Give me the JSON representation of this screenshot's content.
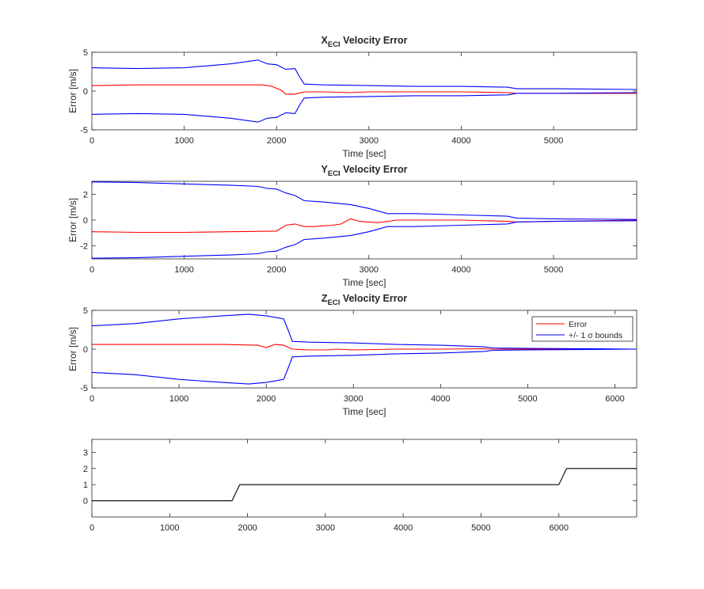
{
  "colors": {
    "error": "#ff0000",
    "bounds": "#0000ff",
    "step": "#000000",
    "axes": "#262626",
    "background": "#ffffff"
  },
  "chart_data": [
    {
      "type": "line",
      "title": {
        "base": "X",
        "sub": "ECI",
        "rest": " Velocity Error"
      },
      "xlabel": "Time [sec]",
      "ylabel": "Error [m/s]",
      "xlim": [
        0,
        5900
      ],
      "ylim": [
        -5,
        5
      ],
      "xticks": [
        0,
        1000,
        2000,
        3000,
        4000,
        5000
      ],
      "yticks": [
        -5,
        0,
        5
      ],
      "grid": false,
      "series": [
        {
          "role": "error",
          "x": [
            0,
            500,
            1000,
            1500,
            1850,
            1950,
            2050,
            2100,
            2200,
            2300,
            2500,
            2800,
            3000,
            3200,
            3500,
            4000,
            4500,
            4600,
            5000,
            5900
          ],
          "y": [
            0.7,
            0.8,
            0.8,
            0.8,
            0.8,
            0.6,
            0.1,
            -0.4,
            -0.4,
            -0.1,
            -0.1,
            -0.2,
            -0.1,
            -0.1,
            -0.1,
            -0.1,
            -0.2,
            -0.3,
            -0.3,
            -0.3
          ]
        },
        {
          "role": "bounds",
          "x": [
            0,
            500,
            1000,
            1500,
            1800,
            1900,
            2000,
            2100,
            2200,
            2250,
            2300,
            2500,
            3000,
            3500,
            4000,
            4500,
            4600,
            5000,
            5900
          ],
          "y": [
            3.0,
            2.9,
            3.0,
            3.5,
            4.0,
            3.5,
            3.4,
            2.8,
            2.9,
            1.8,
            0.9,
            0.8,
            0.7,
            0.6,
            0.6,
            0.5,
            0.3,
            0.3,
            0.2
          ]
        },
        {
          "role": "bounds",
          "x": [
            0,
            500,
            1000,
            1500,
            1800,
            1900,
            2000,
            2100,
            2200,
            2250,
            2300,
            2500,
            3000,
            3500,
            4000,
            4500,
            4600,
            5000,
            5900
          ],
          "y": [
            -3.0,
            -2.9,
            -3.0,
            -3.5,
            -4.0,
            -3.5,
            -3.4,
            -2.8,
            -2.9,
            -1.8,
            -0.9,
            -0.8,
            -0.7,
            -0.6,
            -0.6,
            -0.5,
            -0.3,
            -0.3,
            -0.2
          ]
        }
      ]
    },
    {
      "type": "line",
      "title": {
        "base": "Y",
        "sub": "ECI",
        "rest": " Velocity Error"
      },
      "xlabel": "Time [sec]",
      "ylabel": "Error [m/s]",
      "xlim": [
        0,
        5900
      ],
      "ylim": [
        -3,
        3
      ],
      "xticks": [
        0,
        1000,
        2000,
        3000,
        4000,
        5000
      ],
      "yticks": [
        -2,
        0,
        2
      ],
      "grid": false,
      "series": [
        {
          "role": "error",
          "x": [
            0,
            500,
            1000,
            1500,
            2000,
            2100,
            2200,
            2300,
            2400,
            2600,
            2700,
            2800,
            2900,
            3100,
            3300,
            4000,
            4500,
            4600,
            5000,
            5900
          ],
          "y": [
            -0.9,
            -0.95,
            -0.95,
            -0.9,
            -0.85,
            -0.4,
            -0.3,
            -0.5,
            -0.5,
            -0.4,
            -0.3,
            0.1,
            -0.1,
            -0.2,
            0.0,
            0.0,
            -0.1,
            -0.15,
            -0.1,
            0.0
          ]
        },
        {
          "role": "bounds",
          "x": [
            0,
            500,
            1000,
            1500,
            1800,
            1900,
            2000,
            2100,
            2200,
            2300,
            2500,
            2800,
            3000,
            3200,
            3500,
            4000,
            4500,
            4600,
            5000,
            5900
          ],
          "y": [
            2.95,
            2.9,
            2.8,
            2.7,
            2.6,
            2.45,
            2.4,
            2.1,
            1.9,
            1.5,
            1.4,
            1.2,
            0.9,
            0.5,
            0.5,
            0.4,
            0.3,
            0.15,
            0.1,
            0.05
          ]
        },
        {
          "role": "bounds",
          "x": [
            0,
            500,
            1000,
            1500,
            1800,
            1900,
            2000,
            2100,
            2200,
            2300,
            2500,
            2800,
            3000,
            3200,
            3500,
            4000,
            4500,
            4600,
            5000,
            5900
          ],
          "y": [
            -2.95,
            -2.9,
            -2.8,
            -2.7,
            -2.6,
            -2.45,
            -2.4,
            -2.1,
            -1.9,
            -1.5,
            -1.4,
            -1.2,
            -0.9,
            -0.5,
            -0.5,
            -0.4,
            -0.3,
            -0.15,
            -0.1,
            -0.05
          ]
        }
      ]
    },
    {
      "type": "line",
      "title": {
        "base": "Z",
        "sub": "ECI",
        "rest": " Velocity Error"
      },
      "xlabel": "Time [sec]",
      "ylabel": "Error [m/s]",
      "xlim": [
        0,
        6250
      ],
      "ylim": [
        -5,
        5
      ],
      "xticks": [
        0,
        1000,
        2000,
        3000,
        4000,
        5000,
        6000
      ],
      "yticks": [
        -5,
        0,
        5
      ],
      "grid": false,
      "legend": {
        "position": "top-right",
        "entries": [
          {
            "label": "Error",
            "role": "error"
          },
          {
            "label": "+/- 1 σ bounds",
            "role": "bounds"
          }
        ]
      },
      "series": [
        {
          "role": "error",
          "x": [
            0,
            500,
            1000,
            1500,
            1900,
            2000,
            2100,
            2200,
            2300,
            2500,
            2700,
            2800,
            3000,
            3500,
            4000,
            4500,
            4600,
            5000,
            6250
          ],
          "y": [
            0.6,
            0.6,
            0.6,
            0.6,
            0.5,
            0.2,
            0.6,
            0.5,
            0.0,
            -0.1,
            -0.1,
            0.0,
            -0.1,
            0.0,
            0.0,
            0.05,
            0.0,
            0.0,
            0.0
          ]
        },
        {
          "role": "bounds",
          "x": [
            0,
            500,
            1000,
            1500,
            1800,
            1900,
            2000,
            2100,
            2200,
            2250,
            2300,
            2500,
            3000,
            3500,
            4000,
            4500,
            4600,
            5000,
            6250
          ],
          "y": [
            3.0,
            3.3,
            3.9,
            4.3,
            4.5,
            4.4,
            4.3,
            4.1,
            3.9,
            2.5,
            1.0,
            0.9,
            0.8,
            0.6,
            0.5,
            0.3,
            0.15,
            0.1,
            0.0
          ]
        },
        {
          "role": "bounds",
          "x": [
            0,
            500,
            1000,
            1500,
            1800,
            1900,
            2000,
            2100,
            2200,
            2250,
            2300,
            2500,
            3000,
            3500,
            4000,
            4500,
            4600,
            5000,
            6250
          ],
          "y": [
            -3.0,
            -3.3,
            -3.9,
            -4.3,
            -4.5,
            -4.4,
            -4.3,
            -4.1,
            -3.9,
            -2.5,
            -1.0,
            -0.9,
            -0.8,
            -0.6,
            -0.5,
            -0.3,
            -0.15,
            -0.1,
            0.0
          ]
        }
      ]
    },
    {
      "type": "line",
      "title": null,
      "xlabel": "",
      "ylabel": "",
      "xlim": [
        0,
        7000
      ],
      "ylim": [
        -1,
        3.8
      ],
      "xticks": [
        0,
        1000,
        2000,
        3000,
        4000,
        5000,
        6000
      ],
      "yticks": [
        0,
        1,
        2,
        3
      ],
      "grid": false,
      "series": [
        {
          "role": "step",
          "x": [
            0,
            1800,
            1900,
            6000,
            6100,
            7000
          ],
          "y": [
            0,
            0,
            1,
            1,
            2,
            2
          ]
        }
      ]
    }
  ]
}
